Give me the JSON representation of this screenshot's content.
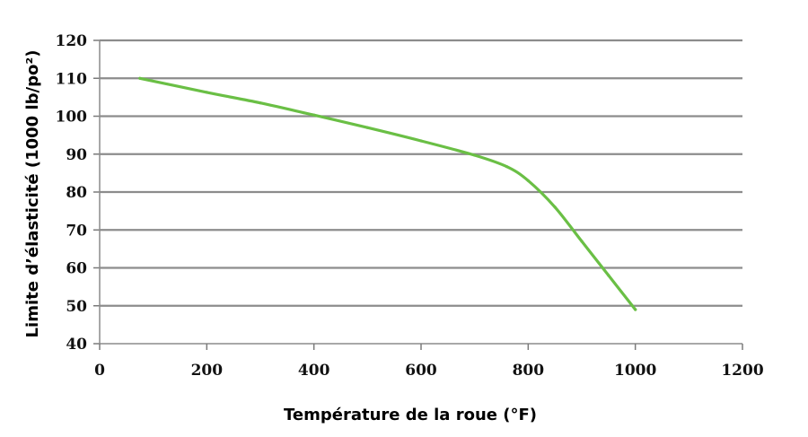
{
  "chart_data": {
    "type": "line",
    "title": "",
    "xlabel": "Température de la roue (°F)",
    "ylabel": "Limite d’élasticité (1000 lb/po²)",
    "xlim": [
      0,
      1200
    ],
    "ylim": [
      40,
      120
    ],
    "x_ticks": [
      "0",
      "200",
      "400",
      "600",
      "800",
      "1000",
      "1200"
    ],
    "y_ticks": [
      "40",
      "50",
      "60",
      "70",
      "80",
      "90",
      "100",
      "110",
      "120"
    ],
    "grid": "horizontal",
    "legend": "none",
    "series": [
      {
        "color": "#6abf45",
        "x": [
          75,
          200,
          300,
          400,
          500,
          600,
          700,
          760,
          800,
          850,
          900,
          950,
          1000
        ],
        "y": [
          110,
          106.3,
          103.5,
          100.3,
          97,
          93.5,
          89.7,
          86.7,
          83,
          76,
          67,
          58,
          49
        ]
      }
    ]
  }
}
